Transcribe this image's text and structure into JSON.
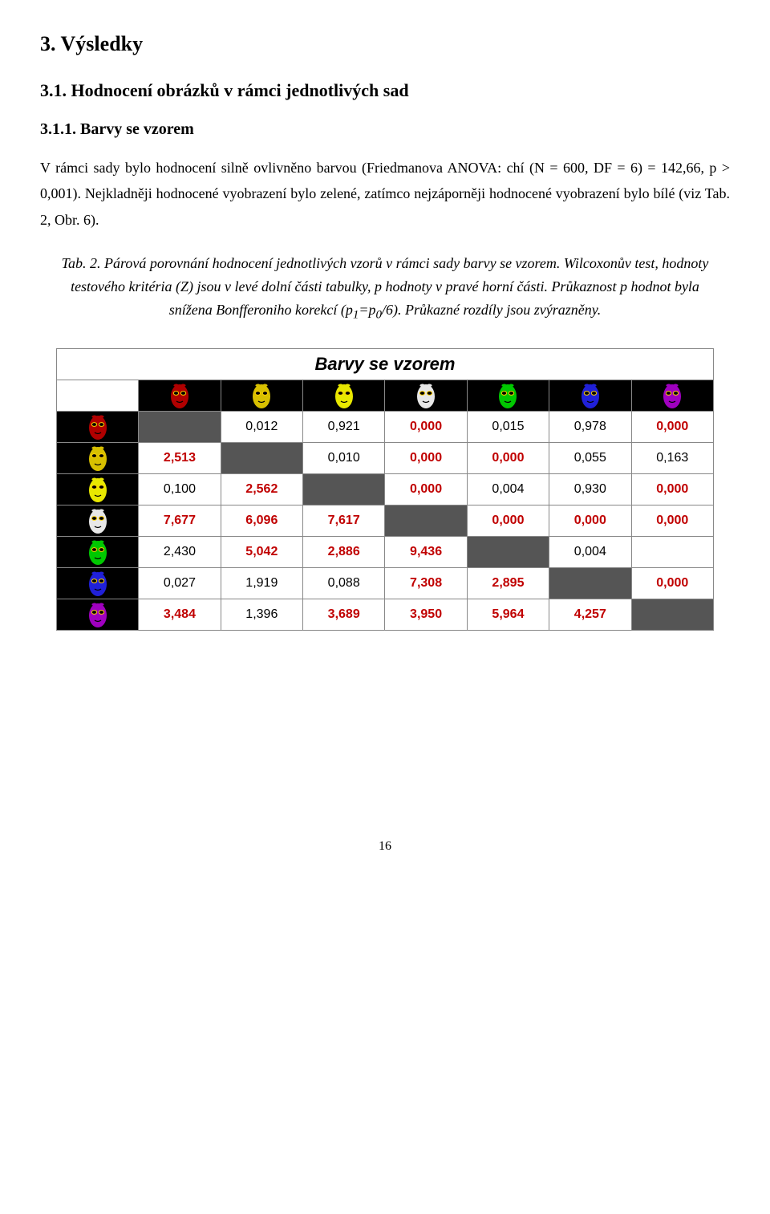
{
  "headings": {
    "h1": "3. Výsledky",
    "h2": "3.1.  Hodnocení obrázků v rámci jednotlivých sad",
    "h3": "3.1.1.  Barvy se vzorem"
  },
  "paragraph": "V rámci sady bylo hodnocení silně ovlivněno barvou (Friedmanova ANOVA: chí (N = 600, DF = 6) = 142,66, p > 0,001). Nejkladněji hodnocené vyobrazení bylo zelené, zatímco nejzáporněji hodnocené vyobrazení bylo bílé (viz Tab. 2, Obr. 6).",
  "caption_parts": {
    "a": "Tab. 2. Párová porovnání hodnocení jednotlivých vzorů v rámci sady barvy se vzorem. Wilcoxonův test, hodnoty testového kritéria (Z) jsou v levé dolní části tabulky, p hodnoty v pravé horní části. Průkaznost p hodnot byla snížena Bonfferoniho korekcí (p",
    "sub1": "1",
    "mid": "=p",
    "sub0": "0",
    "b": "/6). Průkazné rozdíly jsou zvýrazněny."
  },
  "table": {
    "title": "Barvy se vzorem",
    "mask_colors": [
      "#b00000",
      "#d8c000",
      "#e8e800",
      "#e8e8e8",
      "#00c800",
      "#2020d8",
      "#a000c0"
    ],
    "matrix": [
      [
        null,
        {
          "v": "0,012",
          "sig": false
        },
        {
          "v": "0,921",
          "sig": false
        },
        {
          "v": "0,000",
          "sig": true
        },
        {
          "v": "0,015",
          "sig": false
        },
        {
          "v": "0,978",
          "sig": false
        },
        {
          "v": "0,000",
          "sig": true
        }
      ],
      [
        {
          "v": "2,513",
          "sig": true
        },
        null,
        {
          "v": "0,010",
          "sig": false
        },
        {
          "v": "0,000",
          "sig": true
        },
        {
          "v": "0,000",
          "sig": true
        },
        {
          "v": "0,055",
          "sig": false
        },
        {
          "v": "0,163",
          "sig": false
        }
      ],
      [
        {
          "v": "0,100",
          "sig": false
        },
        {
          "v": "2,562",
          "sig": true
        },
        null,
        {
          "v": "0,000",
          "sig": true
        },
        {
          "v": "0,004",
          "sig": false
        },
        {
          "v": "0,930",
          "sig": false
        },
        {
          "v": "0,000",
          "sig": true
        }
      ],
      [
        {
          "v": "7,677",
          "sig": true
        },
        {
          "v": "6,096",
          "sig": true
        },
        {
          "v": "7,617",
          "sig": true
        },
        null,
        {
          "v": "0,000",
          "sig": true
        },
        {
          "v": "0,000",
          "sig": true
        },
        {
          "v": "0,000",
          "sig": true
        }
      ],
      [
        {
          "v": "2,430",
          "sig": false
        },
        {
          "v": "5,042",
          "sig": true
        },
        {
          "v": "2,886",
          "sig": true
        },
        {
          "v": "9,436",
          "sig": true
        },
        null,
        {
          "v": "0,004",
          "sig": false
        },
        {
          "v": "",
          "sig": false,
          "blank": true
        }
      ],
      [
        {
          "v": "0,027",
          "sig": false
        },
        {
          "v": "1,919",
          "sig": false
        },
        {
          "v": "0,088",
          "sig": false
        },
        {
          "v": "7,308",
          "sig": true
        },
        {
          "v": "2,895",
          "sig": true
        },
        null,
        {
          "v": "0,000",
          "sig": true
        }
      ],
      [
        {
          "v": "3,484",
          "sig": true
        },
        {
          "v": "1,396",
          "sig": false
        },
        {
          "v": "3,689",
          "sig": true
        },
        {
          "v": "3,950",
          "sig": true
        },
        {
          "v": "5,964",
          "sig": true
        },
        {
          "v": "4,257",
          "sig": true
        },
        null
      ]
    ],
    "sig_color": "#c00000",
    "normal_color": "#000000",
    "font_size": 16
  },
  "page_number": "16"
}
